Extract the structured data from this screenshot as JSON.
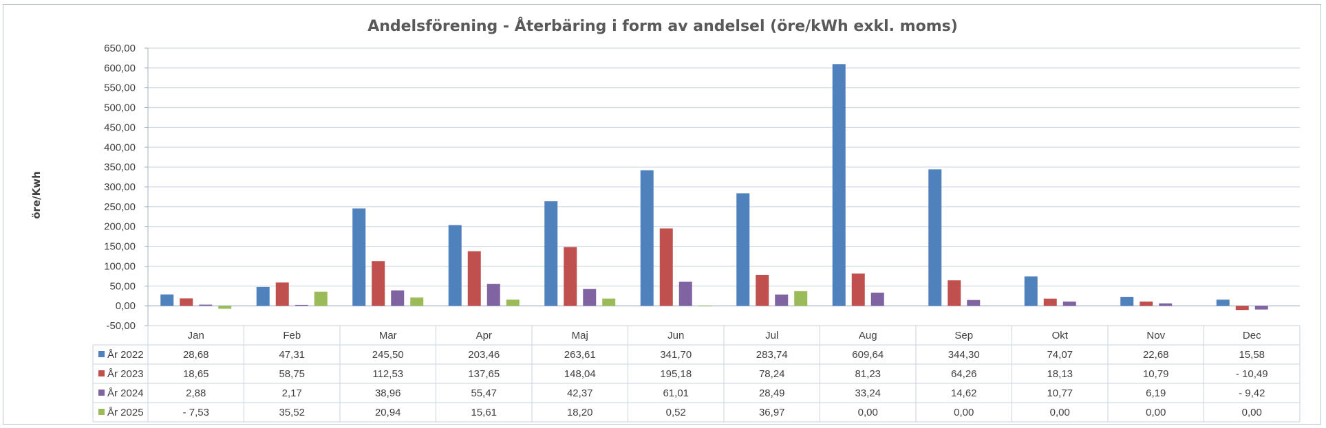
{
  "chart_data": {
    "type": "bar",
    "title": "Andelsförening - Återbäring i form av andelsel (öre/kWh exkl. moms)",
    "ylabel": "öre/Kwh",
    "xlabel": "",
    "ylim": [
      -50,
      650
    ],
    "ytick_step": 50,
    "ytick_labels": [
      "-50,00",
      "0,00",
      "50,00",
      "100,00",
      "150,00",
      "200,00",
      "250,00",
      "300,00",
      "350,00",
      "400,00",
      "450,00",
      "500,00",
      "550,00",
      "600,00",
      "650,00"
    ],
    "grid": true,
    "legend": "data-table",
    "categories": [
      "Jan",
      "Feb",
      "Mar",
      "Apr",
      "Maj",
      "Jun",
      "Jul",
      "Aug",
      "Sep",
      "Okt",
      "Nov",
      "Dec"
    ],
    "series": [
      {
        "name": "År 2022",
        "color": "#4f81bd",
        "values": [
          28.68,
          47.31,
          245.5,
          203.46,
          263.61,
          341.7,
          283.74,
          609.64,
          344.3,
          74.07,
          22.68,
          15.58
        ],
        "labels": [
          "28,68",
          "47,31",
          "245,50",
          "203,46",
          "263,61",
          "341,70",
          "283,74",
          "609,64",
          "344,30",
          "74,07",
          "22,68",
          "15,58"
        ]
      },
      {
        "name": "År 2023",
        "color": "#c0504d",
        "values": [
          18.65,
          58.75,
          112.53,
          137.65,
          148.04,
          195.18,
          78.24,
          81.23,
          64.26,
          18.13,
          10.79,
          -10.49
        ],
        "labels": [
          "18,65",
          "58,75",
          "112,53",
          "137,65",
          "148,04",
          "195,18",
          "78,24",
          "81,23",
          "64,26",
          "18,13",
          "10,79",
          "- 10,49"
        ]
      },
      {
        "name": "År 2024",
        "color": "#8064a2",
        "values": [
          2.88,
          2.17,
          38.96,
          55.47,
          42.37,
          61.01,
          28.49,
          33.24,
          14.62,
          10.77,
          6.19,
          -9.42
        ],
        "labels": [
          "2,88",
          "2,17",
          "38,96",
          "55,47",
          "42,37",
          "61,01",
          "28,49",
          "33,24",
          "14,62",
          "10,77",
          "6,19",
          "- 9,42"
        ]
      },
      {
        "name": "År 2025",
        "color": "#9bbb59",
        "values": [
          -7.53,
          35.52,
          20.94,
          15.61,
          18.2,
          0.52,
          36.97,
          0.0,
          0.0,
          0.0,
          0.0,
          0.0
        ],
        "labels": [
          "- 7,53",
          "35,52",
          "20,94",
          "15,61",
          "18,20",
          "0,52",
          "36,97",
          "0,00",
          "0,00",
          "0,00",
          "0,00",
          "0,00"
        ]
      }
    ]
  }
}
